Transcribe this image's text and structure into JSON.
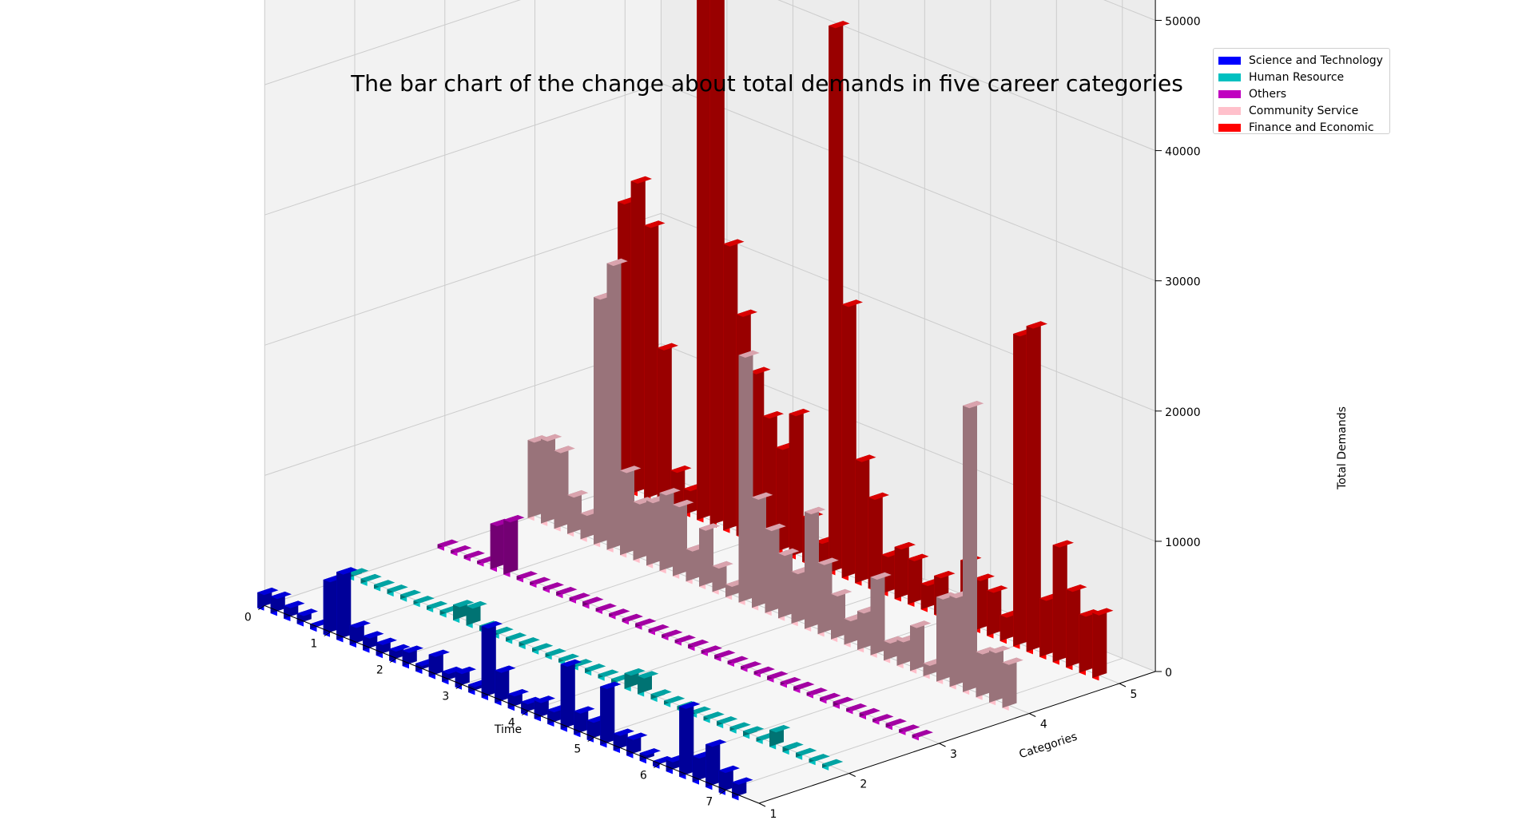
{
  "chart_data": {
    "type": "bar",
    "title": "The bar chart of the change about total demands in five career categories",
    "xlabel": "Time",
    "ylabel": "Categories",
    "zlabel": "Total Demands",
    "x_ticks": [
      "0",
      "1",
      "2",
      "3",
      "4",
      "5",
      "6",
      "7"
    ],
    "y_ticks": [
      "1",
      "2",
      "3",
      "4",
      "5"
    ],
    "z_ticks": [
      "0",
      "10000",
      "20000",
      "30000",
      "40000",
      "50000"
    ],
    "xlim": [
      0,
      7.5
    ],
    "ylim": [
      1,
      5
    ],
    "zlim": [
      0,
      52000
    ],
    "grid": true,
    "legend_position": "top-right",
    "x": [
      0.0,
      0.2,
      0.4,
      0.6,
      0.8,
      1.0,
      1.2,
      1.4,
      1.6,
      1.8,
      2.0,
      2.2,
      2.4,
      2.6,
      2.8,
      3.0,
      3.2,
      3.4,
      3.6,
      3.8,
      4.0,
      4.2,
      4.4,
      4.6,
      4.8,
      5.0,
      5.2,
      5.4,
      5.6,
      5.8,
      6.0,
      6.2,
      6.4,
      6.6,
      6.8,
      7.0,
      7.2
    ],
    "series": [
      {
        "name": "Science and Technology",
        "category": 1,
        "color": "#0000ff",
        "values": [
          1200,
          1300,
          1000,
          800,
          400,
          4200,
          5200,
          1500,
          1100,
          1000,
          900,
          1200,
          600,
          1700,
          800,
          1200,
          600,
          5500,
          2500,
          1100,
          900,
          1400,
          1100,
          5000,
          1800,
          1500,
          4500,
          1300,
          1400,
          600,
          400,
          900,
          5400,
          2000,
          3300,
          1700,
          1200
        ]
      },
      {
        "name": "Human Resource",
        "category": 2,
        "color": "#00c0c0",
        "values": [
          400,
          350,
          300,
          350,
          350,
          300,
          300,
          350,
          1200,
          1500,
          400,
          350,
          300,
          350,
          300,
          300,
          300,
          300,
          350,
          300,
          350,
          1200,
          1400,
          400,
          300,
          300,
          300,
          300,
          350,
          300,
          400,
          300,
          1300,
          400,
          350,
          300,
          300
        ]
      },
      {
        "name": "Others",
        "category": 3,
        "color": "#c000c0",
        "values": [
          300,
          250,
          250,
          250,
          3500,
          4200,
          300,
          250,
          250,
          300,
          250,
          350,
          250,
          250,
          250,
          300,
          250,
          250,
          250,
          300,
          250,
          300,
          250,
          250,
          250,
          300,
          250,
          300,
          250,
          250,
          350,
          250,
          300,
          250,
          300,
          250,
          250
        ]
      },
      {
        "name": "Community Service",
        "category": 4,
        "color": "#ffc0cb",
        "values": [
          6000,
          6500,
          6000,
          3000,
          2000,
          19000,
          22000,
          6500,
          4500,
          5000,
          6000,
          5500,
          2500,
          4500,
          2000,
          1000,
          19000,
          8500,
          6500,
          5000,
          4000,
          9000,
          5500,
          3500,
          2000,
          3000,
          6000,
          1500,
          2000,
          3500,
          1000,
          6500,
          7000,
          22000,
          3500,
          4000,
          3500
        ]
      },
      {
        "name": "Finance and Economic",
        "category": 5,
        "color": "#ff0000",
        "values": [
          22000,
          24000,
          21000,
          12000,
          3000,
          2000,
          46000,
          52000,
          22000,
          17000,
          13000,
          10000,
          8000,
          11000,
          3500,
          2000,
          42000,
          21000,
          9500,
          7000,
          3000,
          4000,
          3500,
          2000,
          3000,
          1000,
          5000,
          4000,
          3500,
          2000,
          24000,
          25000,
          4500,
          9000,
          6000,
          4500,
          5000
        ]
      }
    ]
  }
}
